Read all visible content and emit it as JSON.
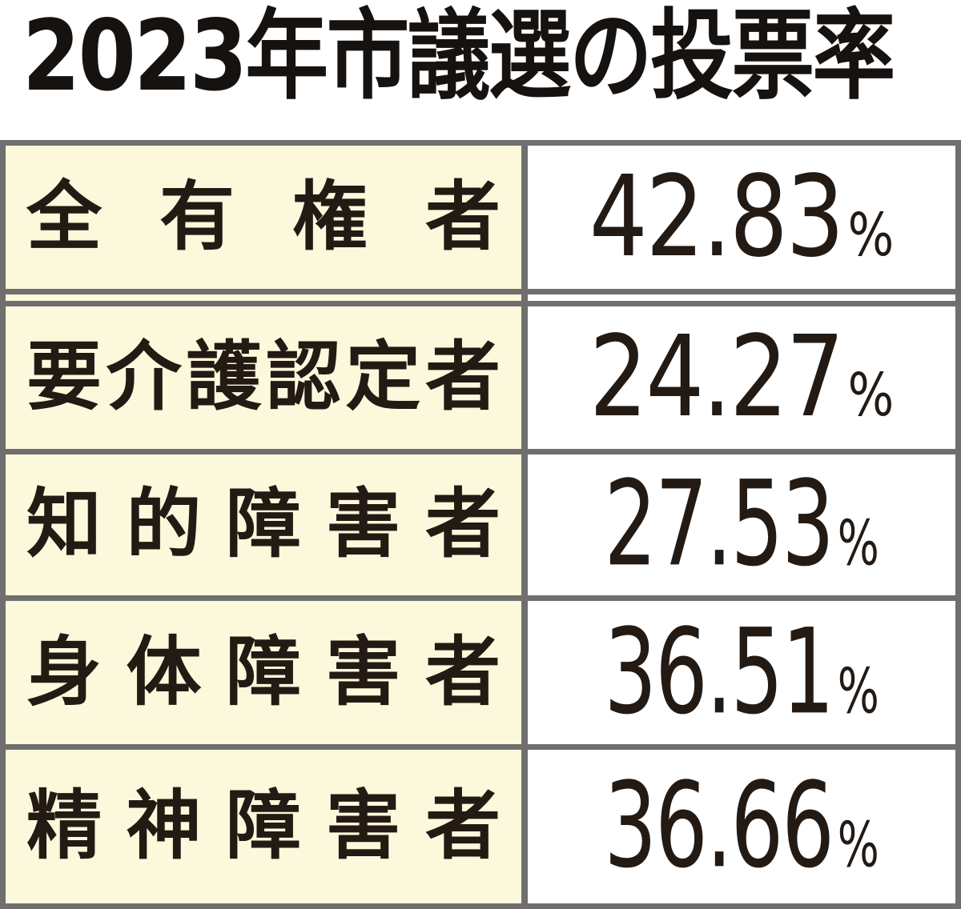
{
  "title": "2023年市議選の投票率",
  "table": {
    "rows": [
      {
        "label": "全有権者",
        "value": "42.83",
        "unit": "%"
      },
      {
        "label": "要介護認定者",
        "value": "24.27",
        "unit": "%"
      },
      {
        "label": "知的障害者",
        "value": "27.53",
        "unit": "%"
      },
      {
        "label": "身体障害者",
        "value": "36.51",
        "unit": "%"
      },
      {
        "label": "精神障害者",
        "value": "36.66",
        "unit": "%"
      }
    ]
  },
  "chart_data": {
    "type": "table",
    "title": "2023年市議選の投票率",
    "categories": [
      "全有権者",
      "要介護認定者",
      "知的障害者",
      "身体障害者",
      "精神障害者"
    ],
    "values": [
      42.83,
      24.27,
      27.53,
      36.51,
      36.66
    ],
    "unit": "%",
    "layout": "two-column table, category column cream background, value column white, gray grid borders, double rule below first row"
  },
  "theme": {
    "cream": "#fcf8dc",
    "border": "#6f6f6f",
    "text": "#241a14",
    "title_color": "#161210",
    "value_bg": "#ffffff"
  }
}
